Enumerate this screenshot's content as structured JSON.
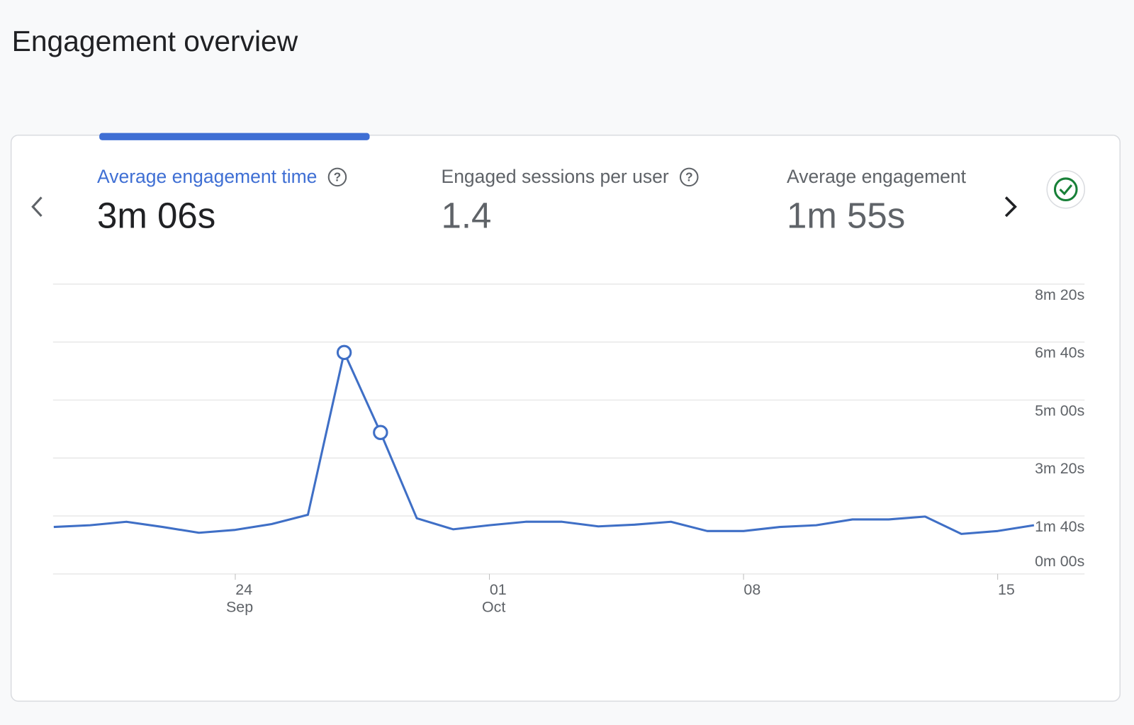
{
  "header": {
    "title": "Engagement overview"
  },
  "tabs": [
    {
      "title": "Average engagement time",
      "value": "3m 06s",
      "selected": true
    },
    {
      "title": "Engaged sessions per user",
      "value": "1.4",
      "selected": false
    },
    {
      "title": "Average engagement",
      "value": "1m 55s",
      "selected": false
    }
  ],
  "chart_data": {
    "type": "line",
    "categories": [
      null,
      null,
      null,
      null,
      null,
      [
        "24",
        "Sep"
      ],
      null,
      null,
      null,
      null,
      null,
      null,
      [
        "01",
        "Oct"
      ],
      null,
      null,
      null,
      null,
      null,
      null,
      [
        "08"
      ],
      null,
      null,
      null,
      null,
      null,
      null,
      [
        "15"
      ],
      null
    ],
    "series": [
      {
        "name": "Average engagement time",
        "color": "#3f6fc6",
        "values": [
          81,
          84,
          90,
          81,
          71,
          76,
          86,
          102,
          382,
          244,
          96,
          77,
          84,
          90,
          90,
          82,
          85,
          90,
          74,
          74,
          81,
          84,
          94,
          94,
          99,
          69,
          74,
          84
        ],
        "highlight_points": [
          8,
          9
        ]
      }
    ],
    "ylim": [
      0,
      500
    ],
    "yticks": [
      {
        "value": 0,
        "label": "0m 00s"
      },
      {
        "value": 100,
        "label": "1m 40s"
      },
      {
        "value": 200,
        "label": "3m 20s"
      },
      {
        "value": 300,
        "label": "5m 00s"
      },
      {
        "value": 400,
        "label": "6m 40s"
      },
      {
        "value": 500,
        "label": "8m 20s"
      }
    ],
    "grid": true
  }
}
